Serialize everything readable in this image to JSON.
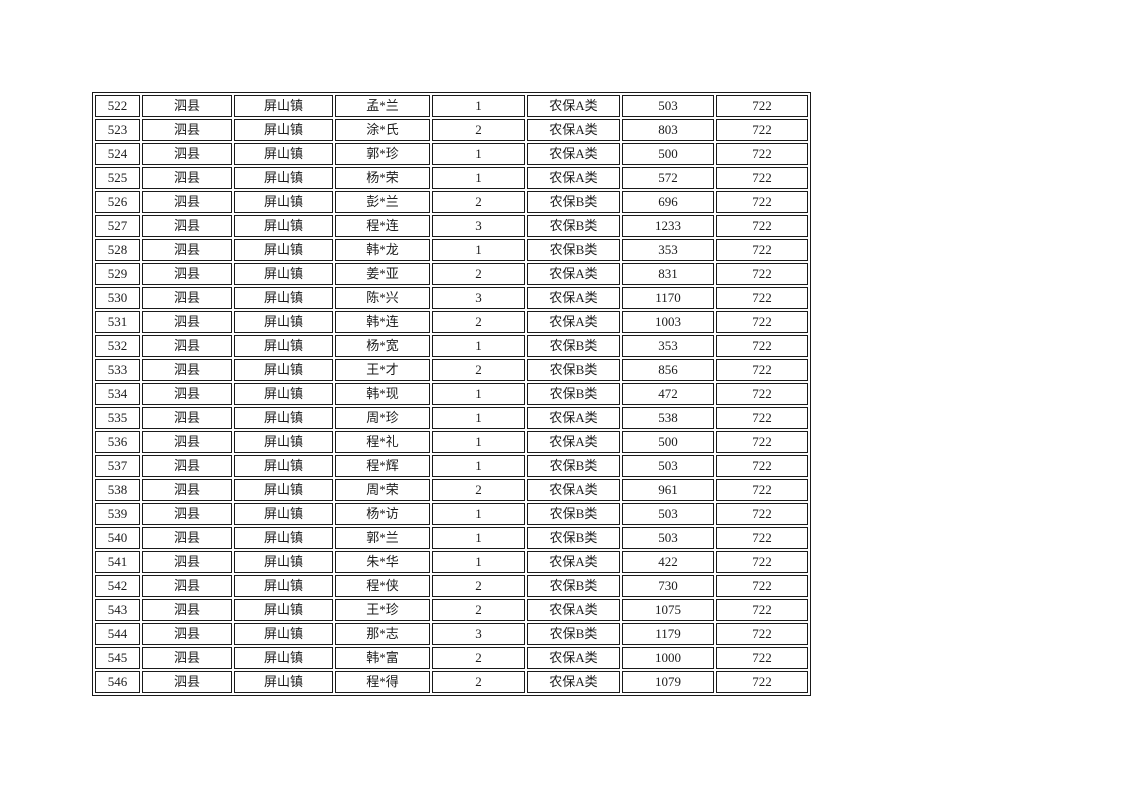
{
  "page": {
    "background_color": "#ffffff",
    "text_color": "#1c1c1c",
    "border_color": "#1a1a1a"
  },
  "table": {
    "columns": [
      {
        "key": "seq"
      },
      {
        "key": "county"
      },
      {
        "key": "town"
      },
      {
        "key": "name"
      },
      {
        "key": "count"
      },
      {
        "key": "category"
      },
      {
        "key": "amount"
      },
      {
        "key": "code"
      }
    ],
    "rows": [
      [
        "522",
        "泗县",
        "屏山镇",
        "孟*兰",
        "1",
        "农保A类",
        "503",
        "722"
      ],
      [
        "523",
        "泗县",
        "屏山镇",
        "涂*氏",
        "2",
        "农保A类",
        "803",
        "722"
      ],
      [
        "524",
        "泗县",
        "屏山镇",
        "郭*珍",
        "1",
        "农保A类",
        "500",
        "722"
      ],
      [
        "525",
        "泗县",
        "屏山镇",
        "杨*荣",
        "1",
        "农保A类",
        "572",
        "722"
      ],
      [
        "526",
        "泗县",
        "屏山镇",
        "彭*兰",
        "2",
        "农保B类",
        "696",
        "722"
      ],
      [
        "527",
        "泗县",
        "屏山镇",
        "程*连",
        "3",
        "农保B类",
        "1233",
        "722"
      ],
      [
        "528",
        "泗县",
        "屏山镇",
        "韩*龙",
        "1",
        "农保B类",
        "353",
        "722"
      ],
      [
        "529",
        "泗县",
        "屏山镇",
        "姜*亚",
        "2",
        "农保A类",
        "831",
        "722"
      ],
      [
        "530",
        "泗县",
        "屏山镇",
        "陈*兴",
        "3",
        "农保A类",
        "1170",
        "722"
      ],
      [
        "531",
        "泗县",
        "屏山镇",
        "韩*连",
        "2",
        "农保A类",
        "1003",
        "722"
      ],
      [
        "532",
        "泗县",
        "屏山镇",
        "杨*宽",
        "1",
        "农保B类",
        "353",
        "722"
      ],
      [
        "533",
        "泗县",
        "屏山镇",
        "王*才",
        "2",
        "农保B类",
        "856",
        "722"
      ],
      [
        "534",
        "泗县",
        "屏山镇",
        "韩*现",
        "1",
        "农保B类",
        "472",
        "722"
      ],
      [
        "535",
        "泗县",
        "屏山镇",
        "周*珍",
        "1",
        "农保A类",
        "538",
        "722"
      ],
      [
        "536",
        "泗县",
        "屏山镇",
        "程*礼",
        "1",
        "农保A类",
        "500",
        "722"
      ],
      [
        "537",
        "泗县",
        "屏山镇",
        "程*辉",
        "1",
        "农保B类",
        "503",
        "722"
      ],
      [
        "538",
        "泗县",
        "屏山镇",
        "周*荣",
        "2",
        "农保A类",
        "961",
        "722"
      ],
      [
        "539",
        "泗县",
        "屏山镇",
        "杨*访",
        "1",
        "农保B类",
        "503",
        "722"
      ],
      [
        "540",
        "泗县",
        "屏山镇",
        "郭*兰",
        "1",
        "农保B类",
        "503",
        "722"
      ],
      [
        "541",
        "泗县",
        "屏山镇",
        "朱*华",
        "1",
        "农保A类",
        "422",
        "722"
      ],
      [
        "542",
        "泗县",
        "屏山镇",
        "程*侠",
        "2",
        "农保B类",
        "730",
        "722"
      ],
      [
        "543",
        "泗县",
        "屏山镇",
        "王*珍",
        "2",
        "农保A类",
        "1075",
        "722"
      ],
      [
        "544",
        "泗县",
        "屏山镇",
        "那*志",
        "3",
        "农保B类",
        "1179",
        "722"
      ],
      [
        "545",
        "泗县",
        "屏山镇",
        "韩*富",
        "2",
        "农保A类",
        "1000",
        "722"
      ],
      [
        "546",
        "泗县",
        "屏山镇",
        "程*得",
        "2",
        "农保A类",
        "1079",
        "722"
      ]
    ]
  }
}
